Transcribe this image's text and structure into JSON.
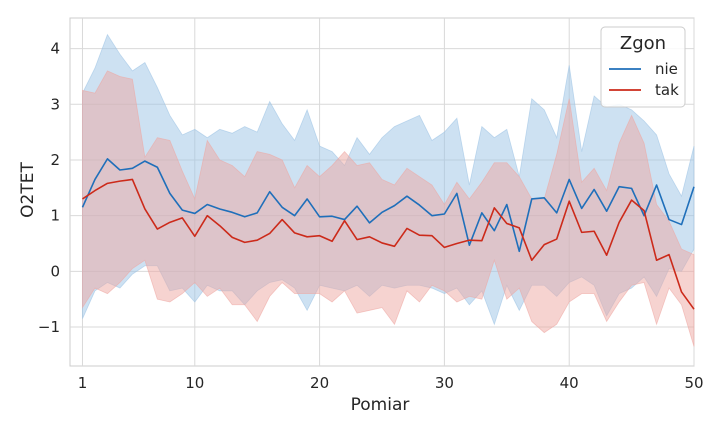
{
  "chart_data": {
    "type": "line",
    "xlabel": "Pomiar",
    "ylabel": "O2TET",
    "xlim": [
      0,
      50
    ],
    "ylim": [
      -1.7,
      4.55
    ],
    "xticks": [
      1,
      10,
      20,
      30,
      40,
      50
    ],
    "yticks": [
      -1,
      0,
      1,
      2,
      3,
      4
    ],
    "ytick_labels": [
      "−1",
      "0",
      "1",
      "2",
      "3",
      "4"
    ],
    "grid": true,
    "legend": {
      "title": "Zgon",
      "position": "top-right"
    },
    "series": [
      {
        "name": "nie",
        "color": "#1f6fba",
        "band_color": "#9cc3e5",
        "x": [
          1,
          2,
          3,
          4,
          5,
          6,
          7,
          8,
          9,
          10,
          11,
          12,
          13,
          14,
          15,
          16,
          17,
          18,
          19,
          20,
          21,
          22,
          23,
          24,
          25,
          26,
          27,
          28,
          29,
          30,
          31,
          32,
          33,
          34,
          35,
          36,
          37,
          38,
          39,
          40,
          41,
          42,
          43,
          44,
          45,
          46,
          47,
          48,
          49,
          50
        ],
        "mean": [
          1.15,
          1.65,
          2.02,
          1.82,
          1.85,
          1.98,
          1.87,
          1.4,
          1.1,
          1.04,
          1.2,
          1.12,
          1.06,
          0.98,
          1.05,
          1.43,
          1.15,
          1.0,
          1.3,
          0.98,
          0.99,
          0.93,
          1.17,
          0.87,
          1.06,
          1.18,
          1.35,
          1.19,
          1.0,
          1.03,
          1.4,
          0.47,
          1.05,
          0.73,
          1.2,
          0.36,
          1.3,
          1.32,
          1.05,
          1.65,
          1.13,
          1.47,
          1.08,
          1.52,
          1.49,
          1.0,
          1.55,
          0.93,
          0.84,
          1.52
        ],
        "upper": [
          3.2,
          3.65,
          4.25,
          3.9,
          3.6,
          3.75,
          3.3,
          2.8,
          2.45,
          2.55,
          2.4,
          2.55,
          2.48,
          2.6,
          2.5,
          3.05,
          2.65,
          2.35,
          2.9,
          2.25,
          2.15,
          1.9,
          2.4,
          2.1,
          2.4,
          2.6,
          2.7,
          2.8,
          2.35,
          2.5,
          2.75,
          1.55,
          2.6,
          2.4,
          2.55,
          1.7,
          3.1,
          2.9,
          2.4,
          3.7,
          2.15,
          3.15,
          2.95,
          3.0,
          2.9,
          2.7,
          2.45,
          1.75,
          1.35,
          2.25
        ],
        "lower": [
          -0.85,
          -0.35,
          -0.2,
          -0.3,
          -0.05,
          0.1,
          0.1,
          -0.35,
          -0.3,
          -0.55,
          -0.25,
          -0.35,
          -0.35,
          -0.6,
          -0.35,
          -0.2,
          -0.15,
          -0.3,
          -0.7,
          -0.25,
          -0.3,
          -0.35,
          -0.25,
          -0.45,
          -0.25,
          -0.3,
          -0.25,
          -0.25,
          -0.3,
          -0.4,
          -0.3,
          -0.6,
          -0.35,
          -0.95,
          -0.25,
          -0.7,
          -0.25,
          -0.25,
          -0.45,
          -0.2,
          -0.1,
          -0.25,
          -0.8,
          -0.4,
          -0.3,
          -0.1,
          -0.45,
          0.05,
          0.0,
          0.4
        ]
      },
      {
        "name": "tak",
        "color": "#cc2a1a",
        "band_color": "#eea7a2",
        "x": [
          1,
          2,
          3,
          4,
          5,
          6,
          7,
          8,
          9,
          10,
          11,
          12,
          13,
          14,
          15,
          16,
          17,
          18,
          19,
          20,
          21,
          22,
          23,
          24,
          25,
          26,
          27,
          28,
          29,
          30,
          31,
          32,
          33,
          34,
          35,
          36,
          37,
          38,
          39,
          40,
          41,
          42,
          43,
          44,
          45,
          46,
          47,
          48,
          49,
          50
        ],
        "mean": [
          1.3,
          1.45,
          1.58,
          1.62,
          1.65,
          1.12,
          0.76,
          0.88,
          0.96,
          0.63,
          1.0,
          0.82,
          0.61,
          0.52,
          0.56,
          0.68,
          0.93,
          0.69,
          0.62,
          0.64,
          0.54,
          0.91,
          0.57,
          0.62,
          0.51,
          0.45,
          0.77,
          0.65,
          0.64,
          0.43,
          0.5,
          0.56,
          0.55,
          1.14,
          0.86,
          0.78,
          0.2,
          0.48,
          0.58,
          1.26,
          0.7,
          0.72,
          0.29,
          0.88,
          1.28,
          1.09,
          0.2,
          0.3,
          -0.37,
          -0.68
        ],
        "upper": [
          3.25,
          3.2,
          3.6,
          3.5,
          3.45,
          2.05,
          2.4,
          2.35,
          1.8,
          1.3,
          2.35,
          2.0,
          1.9,
          1.7,
          2.15,
          2.1,
          2.0,
          1.5,
          1.9,
          1.7,
          1.9,
          2.15,
          1.9,
          1.95,
          1.65,
          1.55,
          1.85,
          1.7,
          1.55,
          1.2,
          1.6,
          1.3,
          1.6,
          1.95,
          1.95,
          1.7,
          1.3,
          1.3,
          2.1,
          3.1,
          1.6,
          1.85,
          1.45,
          2.3,
          2.8,
          2.3,
          1.2,
          0.9,
          0.4,
          0.3
        ],
        "lower": [
          -0.65,
          -0.3,
          -0.4,
          -0.2,
          0.05,
          0.2,
          -0.5,
          -0.55,
          -0.4,
          -0.2,
          -0.45,
          -0.3,
          -0.6,
          -0.6,
          -0.9,
          -0.45,
          -0.2,
          -0.4,
          -0.4,
          -0.4,
          -0.55,
          -0.35,
          -0.75,
          -0.7,
          -0.65,
          -0.95,
          -0.35,
          -0.55,
          -0.25,
          -0.35,
          -0.55,
          -0.45,
          -0.5,
          0.2,
          -0.5,
          -0.3,
          -0.9,
          -1.1,
          -0.95,
          -0.55,
          -0.4,
          -0.4,
          -0.9,
          -0.55,
          -0.25,
          -0.2,
          -0.95,
          -0.3,
          -0.6,
          -1.35
        ]
      }
    ]
  }
}
